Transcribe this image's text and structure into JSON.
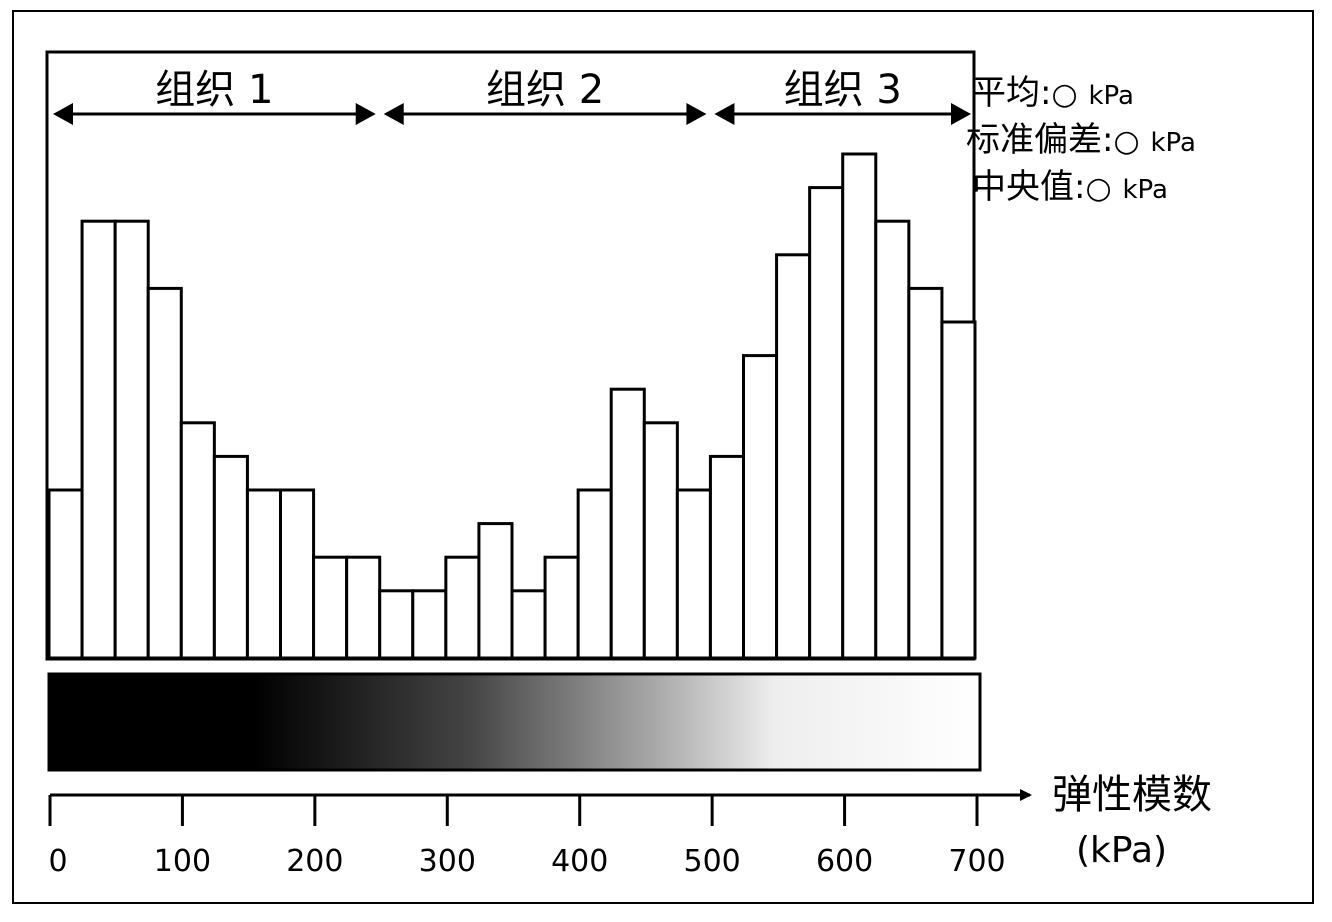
{
  "chart_data": {
    "type": "bar",
    "title": "",
    "x": [
      0,
      25,
      50,
      75,
      100,
      125,
      150,
      175,
      200,
      225,
      250,
      275,
      300,
      325,
      350,
      375,
      400,
      425,
      450,
      475,
      500,
      525,
      550,
      575,
      600,
      625,
      650,
      675
    ],
    "bin_width": 25,
    "values": [
      5,
      13,
      13,
      11,
      7,
      6,
      5,
      5,
      3,
      3,
      2,
      2,
      3,
      4,
      2,
      3,
      5,
      8,
      7,
      5,
      6,
      9,
      12,
      14,
      15,
      13,
      11,
      10
    ],
    "xlim": [
      0,
      700
    ],
    "ylim": [
      0,
      15
    ],
    "xticks": [
      0,
      100,
      200,
      300,
      400,
      500,
      600,
      700
    ],
    "xlabel": "弹性模数",
    "xunit": "(kPa)",
    "grid": false,
    "regions": [
      {
        "label": "组织 1",
        "from": 0,
        "to": 250
      },
      {
        "label": "组织 2",
        "from": 250,
        "to": 500
      },
      {
        "label": "组织 3",
        "from": 500,
        "to": 700
      }
    ],
    "gradient_bar": {
      "from_color": "#000000",
      "to_color": "#ffffff"
    }
  },
  "stats": [
    {
      "label": "平均:",
      "value_symbol": "○",
      "unit": "kPa"
    },
    {
      "label": "标准偏差:",
      "value_symbol": "○",
      "unit": "kPa"
    },
    {
      "label": "中央值:",
      "value_symbol": "○",
      "unit": "kPa"
    }
  ]
}
